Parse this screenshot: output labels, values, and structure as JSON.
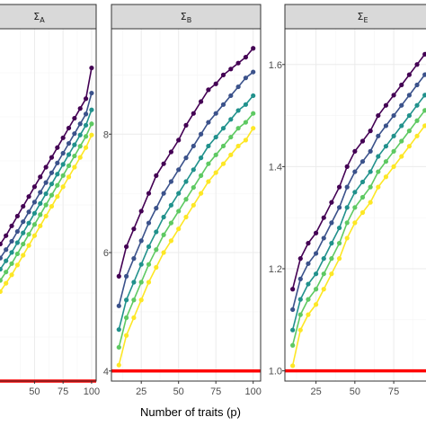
{
  "chart_data": {
    "type": "line",
    "xlabel": "Number of traits (p)",
    "x": [
      10,
      15,
      20,
      25,
      30,
      35,
      40,
      45,
      50,
      55,
      60,
      65,
      70,
      75,
      80,
      85,
      90,
      95,
      100
    ],
    "series_colors": [
      "#440154",
      "#3b528b",
      "#21918c",
      "#5ec962",
      "#fde725"
    ],
    "reference_line": {
      "color": "#ff0000"
    },
    "panels": [
      {
        "strip_symbol": "Σ",
        "strip_subscript": "A",
        "xlim": [
          4,
          104
        ],
        "ylim": [
          4.0,
          5.26
        ],
        "xticks": [
          "50",
          "75",
          "100"
        ],
        "xtick_values": [
          50,
          75,
          100
        ],
        "yticks": [],
        "reference_value": 4.0,
        "series": [
          {
            "values": [
              4.42,
              4.46,
              4.49,
              4.52,
              4.555,
              4.59,
              4.625,
              4.66,
              4.695,
              4.73,
              4.765,
              4.8,
              4.835,
              4.87,
              4.905,
              4.94,
              4.975,
              5.01,
              5.12
            ]
          },
          {
            "values": [
              4.37,
              4.41,
              4.44,
              4.47,
              4.5,
              4.535,
              4.57,
              4.605,
              4.64,
              4.675,
              4.71,
              4.745,
              4.78,
              4.815,
              4.85,
              4.885,
              4.92,
              4.955,
              5.03
            ]
          },
          {
            "values": [
              4.33,
              4.37,
              4.4,
              4.43,
              4.46,
              4.495,
              4.53,
              4.565,
              4.6,
              4.635,
              4.67,
              4.705,
              4.74,
              4.775,
              4.81,
              4.845,
              4.88,
              4.915,
              4.97
            ]
          },
          {
            "values": [
              4.29,
              4.33,
              4.36,
              4.39,
              4.42,
              4.455,
              4.49,
              4.525,
              4.56,
              4.595,
              4.63,
              4.665,
              4.7,
              4.735,
              4.77,
              4.805,
              4.84,
              4.875,
              4.92
            ]
          },
          {
            "values": [
              4.25,
              4.29,
              4.32,
              4.35,
              4.38,
              4.415,
              4.45,
              4.485,
              4.52,
              4.555,
              4.59,
              4.625,
              4.66,
              4.695,
              4.73,
              4.765,
              4.8,
              4.835,
              4.88
            ]
          }
        ]
      },
      {
        "strip_symbol": "Σ",
        "strip_subscript": "B",
        "xlim": [
          5,
          105
        ],
        "ylim": [
          3.83,
          9.78
        ],
        "xticks": [
          "25",
          "50",
          "75",
          "100"
        ],
        "xtick_values": [
          25,
          50,
          75,
          100
        ],
        "yticks": [
          "4",
          "6",
          "8"
        ],
        "ytick_values": [
          4,
          6,
          8
        ],
        "reference_value": 4.0,
        "series": [
          {
            "values": [
              5.6,
              6.1,
              6.4,
              6.7,
              7.0,
              7.3,
              7.5,
              7.7,
              7.9,
              8.15,
              8.35,
              8.55,
              8.75,
              8.85,
              9.0,
              9.1,
              9.2,
              9.3,
              9.45
            ]
          },
          {
            "values": [
              5.1,
              5.6,
              5.9,
              6.2,
              6.5,
              6.75,
              7.0,
              7.2,
              7.4,
              7.6,
              7.8,
              8.0,
              8.2,
              8.35,
              8.5,
              8.65,
              8.8,
              8.95,
              9.05
            ]
          },
          {
            "values": [
              4.7,
              5.2,
              5.5,
              5.8,
              6.1,
              6.35,
              6.6,
              6.8,
              7.0,
              7.2,
              7.4,
              7.6,
              7.8,
              7.95,
              8.1,
              8.25,
              8.4,
              8.5,
              8.65
            ]
          },
          {
            "values": [
              4.4,
              4.9,
              5.2,
              5.5,
              5.8,
              6.05,
              6.3,
              6.5,
              6.7,
              6.9,
              7.1,
              7.3,
              7.5,
              7.65,
              7.8,
              7.95,
              8.1,
              8.2,
              8.35
            ]
          },
          {
            "values": [
              4.1,
              4.6,
              4.9,
              5.2,
              5.5,
              5.75,
              6.0,
              6.2,
              6.4,
              6.6,
              6.8,
              7.0,
              7.2,
              7.35,
              7.5,
              7.65,
              7.8,
              7.9,
              8.1
            ]
          }
        ]
      },
      {
        "strip_symbol": "Σ",
        "strip_subscript": "E",
        "xlim": [
          5,
          105
        ],
        "ylim": [
          0.98,
          1.67
        ],
        "xticks": [
          "25",
          "50",
          "75"
        ],
        "xtick_values": [
          25,
          50,
          75
        ],
        "yticks": [
          "1.0",
          "1.2",
          "1.4",
          "1.6"
        ],
        "ytick_values": [
          1.0,
          1.2,
          1.4,
          1.6
        ],
        "reference_value": 1.0,
        "series": [
          {
            "values": [
              1.16,
              1.22,
              1.25,
              1.27,
              1.3,
              1.33,
              1.36,
              1.4,
              1.43,
              1.45,
              1.47,
              1.5,
              1.52,
              1.54,
              1.56,
              1.58,
              1.6,
              1.62,
              1.64
            ]
          },
          {
            "values": [
              1.12,
              1.18,
              1.21,
              1.23,
              1.26,
              1.29,
              1.32,
              1.36,
              1.39,
              1.41,
              1.43,
              1.46,
              1.48,
              1.5,
              1.52,
              1.54,
              1.56,
              1.58,
              1.6
            ]
          },
          {
            "values": [
              1.08,
              1.14,
              1.17,
              1.19,
              1.22,
              1.25,
              1.28,
              1.32,
              1.35,
              1.37,
              1.39,
              1.42,
              1.44,
              1.46,
              1.48,
              1.5,
              1.52,
              1.54,
              1.56
            ]
          },
          {
            "values": [
              1.05,
              1.11,
              1.14,
              1.16,
              1.19,
              1.22,
              1.25,
              1.29,
              1.32,
              1.34,
              1.36,
              1.39,
              1.41,
              1.43,
              1.45,
              1.47,
              1.49,
              1.51,
              1.53
            ]
          },
          {
            "values": [
              1.01,
              1.08,
              1.11,
              1.13,
              1.16,
              1.19,
              1.22,
              1.26,
              1.29,
              1.31,
              1.33,
              1.36,
              1.38,
              1.4,
              1.42,
              1.44,
              1.46,
              1.48,
              1.5
            ]
          }
        ]
      }
    ]
  }
}
